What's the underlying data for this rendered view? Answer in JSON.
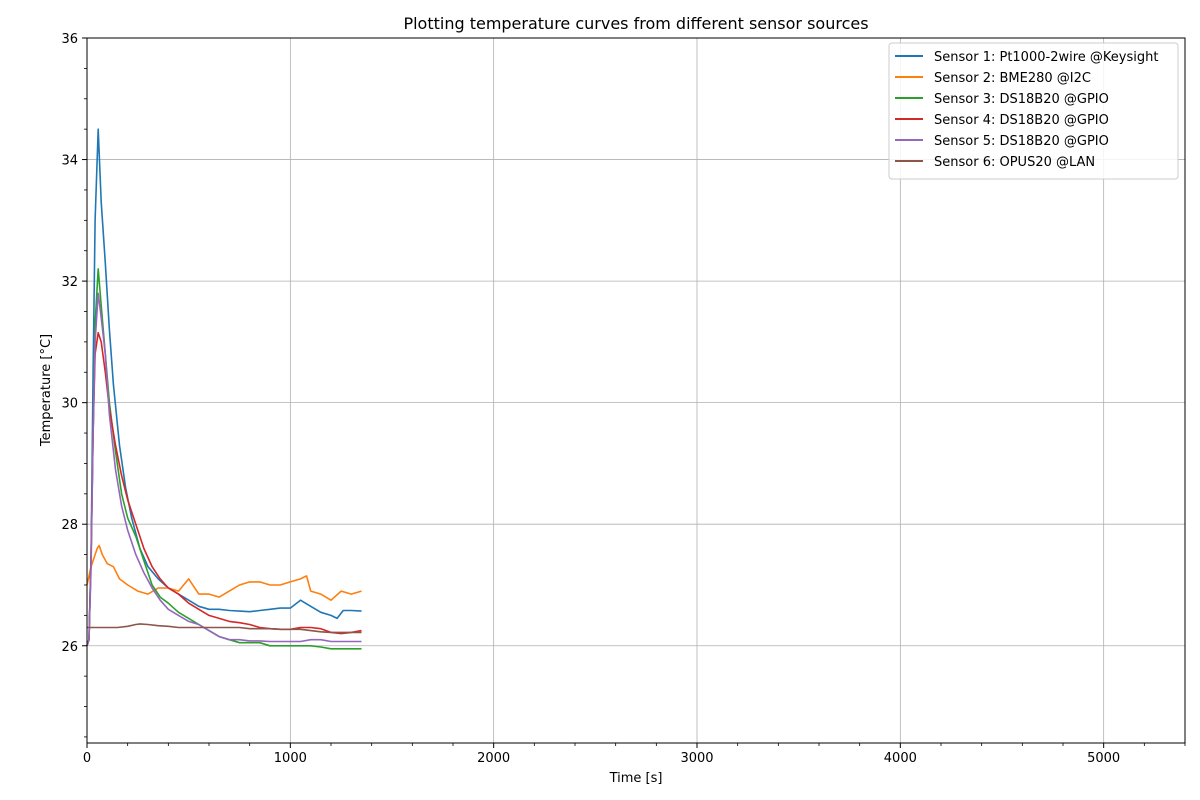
{
  "chart_data": {
    "type": "line",
    "title": "Plotting temperature curves from different sensor sources",
    "xlabel": "Time [s]",
    "ylabel": "Temperature [°C]",
    "xlim": [
      0,
      5400
    ],
    "ylim": [
      24.4,
      36
    ],
    "xticks": [
      "0",
      "1000",
      "2000",
      "3000",
      "4000",
      "5000"
    ],
    "xtick_values": [
      0,
      1000,
      2000,
      3000,
      4000,
      5000
    ],
    "yticks": [
      "26",
      "28",
      "30",
      "32",
      "34",
      "36"
    ],
    "ytick_values": [
      26,
      28,
      30,
      32,
      34,
      36
    ],
    "grid": true,
    "legend_position": "top-right",
    "series": [
      {
        "name": "Sensor 1: Pt1000-2wire @Keysight",
        "color": "#1f77b4",
        "x": [
          0,
          10,
          20,
          30,
          40,
          55,
          70,
          90,
          110,
          130,
          160,
          190,
          220,
          260,
          300,
          350,
          400,
          450,
          500,
          550,
          600,
          650,
          700,
          750,
          800,
          850,
          900,
          950,
          1000,
          1050,
          1100,
          1150,
          1200,
          1230,
          1260,
          1300,
          1350
        ],
        "y": [
          26.0,
          26.1,
          27.5,
          30.5,
          33.0,
          34.5,
          33.3,
          32.3,
          31.2,
          30.3,
          29.3,
          28.6,
          28.1,
          27.6,
          27.3,
          27.1,
          26.95,
          26.85,
          26.75,
          26.65,
          26.6,
          26.6,
          26.58,
          26.57,
          26.56,
          26.58,
          26.6,
          26.62,
          26.62,
          26.75,
          26.65,
          26.55,
          26.5,
          26.45,
          26.58,
          26.58,
          26.57
        ]
      },
      {
        "name": "Sensor 2: BME280 @I2C",
        "color": "#ff7f0e",
        "x": [
          0,
          20,
          40,
          50,
          60,
          75,
          100,
          130,
          160,
          200,
          250,
          300,
          350,
          400,
          450,
          500,
          550,
          600,
          650,
          700,
          750,
          800,
          850,
          900,
          950,
          1000,
          1050,
          1080,
          1100,
          1150,
          1200,
          1250,
          1300,
          1350
        ],
        "y": [
          27.0,
          27.3,
          27.5,
          27.6,
          27.65,
          27.5,
          27.35,
          27.3,
          27.1,
          27.0,
          26.9,
          26.85,
          26.95,
          26.95,
          26.9,
          27.1,
          26.85,
          26.85,
          26.8,
          26.9,
          27.0,
          27.05,
          27.05,
          27.0,
          27.0,
          27.05,
          27.1,
          27.15,
          26.9,
          26.85,
          26.75,
          26.9,
          26.85,
          26.9
        ]
      },
      {
        "name": "Sensor 3: DS18B20 @GPIO",
        "color": "#2ca02c",
        "x": [
          0,
          10,
          20,
          30,
          40,
          55,
          70,
          90,
          110,
          140,
          170,
          200,
          240,
          280,
          320,
          360,
          400,
          450,
          500,
          550,
          600,
          650,
          700,
          750,
          800,
          850,
          900,
          950,
          1000,
          1050,
          1100,
          1150,
          1200,
          1250,
          1300,
          1350
        ],
        "y": [
          26.0,
          26.1,
          27.5,
          29.5,
          31.3,
          32.2,
          31.6,
          30.8,
          30.0,
          29.2,
          28.5,
          28.1,
          27.8,
          27.4,
          27.0,
          26.8,
          26.7,
          26.55,
          26.45,
          26.35,
          26.25,
          26.15,
          26.1,
          26.05,
          26.05,
          26.05,
          26.0,
          26.0,
          26.0,
          26.0,
          26.0,
          25.98,
          25.95,
          25.95,
          25.95,
          25.95
        ]
      },
      {
        "name": "Sensor 4: DS18B20 @GPIO",
        "color": "#d62728",
        "x": [
          0,
          10,
          20,
          30,
          40,
          55,
          70,
          90,
          110,
          140,
          170,
          200,
          240,
          280,
          320,
          360,
          400,
          450,
          500,
          550,
          600,
          650,
          700,
          750,
          800,
          850,
          900,
          950,
          1000,
          1050,
          1100,
          1150,
          1200,
          1250,
          1300,
          1350
        ],
        "y": [
          26.0,
          26.1,
          27.5,
          29.5,
          30.8,
          31.15,
          31.0,
          30.5,
          29.9,
          29.3,
          28.8,
          28.4,
          28.0,
          27.6,
          27.3,
          27.1,
          26.95,
          26.85,
          26.7,
          26.6,
          26.5,
          26.45,
          26.4,
          26.38,
          26.35,
          26.3,
          26.28,
          26.27,
          26.27,
          26.3,
          26.3,
          26.28,
          26.22,
          26.2,
          26.22,
          26.25
        ]
      },
      {
        "name": "Sensor 5: DS18B20 @GPIO",
        "color": "#9467bd",
        "x": [
          0,
          10,
          20,
          30,
          40,
          55,
          70,
          90,
          110,
          140,
          170,
          200,
          240,
          280,
          320,
          360,
          400,
          450,
          500,
          550,
          600,
          650,
          700,
          750,
          800,
          850,
          900,
          950,
          1000,
          1050,
          1100,
          1150,
          1200,
          1250,
          1300,
          1350
        ],
        "y": [
          26.0,
          26.1,
          27.3,
          29.5,
          31.0,
          31.8,
          31.4,
          30.8,
          29.8,
          28.9,
          28.3,
          27.9,
          27.5,
          27.2,
          26.95,
          26.75,
          26.6,
          26.5,
          26.4,
          26.35,
          26.25,
          26.15,
          26.1,
          26.1,
          26.08,
          26.08,
          26.07,
          26.07,
          26.07,
          26.07,
          26.1,
          26.1,
          26.07,
          26.07,
          26.07,
          26.07
        ]
      },
      {
        "name": "Sensor 6: OPUS20 @LAN",
        "color": "#8c564b",
        "x": [
          0,
          50,
          100,
          150,
          200,
          240,
          260,
          300,
          350,
          400,
          450,
          500,
          550,
          600,
          650,
          700,
          750,
          800,
          850,
          900,
          950,
          1000,
          1050,
          1100,
          1150,
          1200,
          1250,
          1300,
          1350
        ],
        "y": [
          26.3,
          26.3,
          26.3,
          26.3,
          26.32,
          26.35,
          26.36,
          26.35,
          26.33,
          26.32,
          26.3,
          26.3,
          26.3,
          26.3,
          26.3,
          26.3,
          26.3,
          26.28,
          26.28,
          26.28,
          26.27,
          26.27,
          26.27,
          26.25,
          26.23,
          26.22,
          26.22,
          26.22,
          26.22
        ]
      }
    ]
  }
}
